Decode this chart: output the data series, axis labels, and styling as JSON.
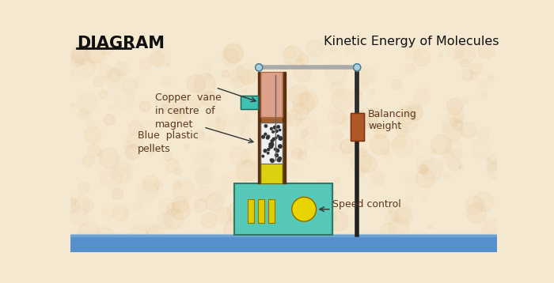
{
  "title": "Kinetic Energy of Molecules",
  "diagram_label": "DIAGRAM",
  "bg_color": "#f5e8d0",
  "labels": {
    "copper_vane": "Copper  vane\nin centre  of\nmagnet",
    "blue_pellets": "Blue  plastic\npellets",
    "balancing_weight": "Balancing\nweight",
    "speed_control": "Speed control"
  },
  "colors": {
    "blue_bar": "#5590cc",
    "base_box": "#55c8b8",
    "tube_outer_wall": "#5a3010",
    "tube_pink": "#dda090",
    "tube_dark_band": "#a06030",
    "pellets_bg": "#f0f0f0",
    "yellow_bottom": "#e8d010",
    "copper_vane": "#40c0b0",
    "pole": "#222222",
    "balancing_weight": "#b05828",
    "pivot": "#999999",
    "yellow_buttons": "#e0cc00",
    "text_dark": "#222222",
    "text_brown": "#5a3820",
    "annotation": "#444444"
  }
}
